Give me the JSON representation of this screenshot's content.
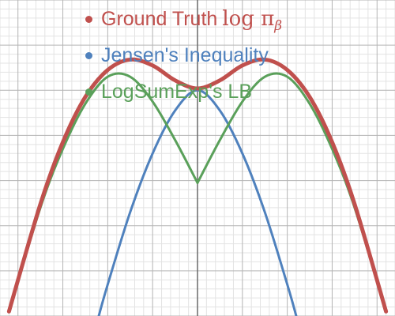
{
  "chart_data": {
    "type": "line",
    "title": "",
    "xlabel": "",
    "ylabel": "",
    "grid": true,
    "legend_position": "top",
    "xlim": [
      -4.4,
      4.4
    ],
    "ylim": [
      -3.0,
      4.0
    ],
    "series": [
      {
        "name": "Ground Truth",
        "name_math": "log π",
        "name_math_sub": "β",
        "color": "#c0504d",
        "x": [
          -4.2,
          -3.5,
          -3.0,
          -2.5,
          -2.0,
          -1.5,
          -1.0,
          -0.5,
          0.0,
          0.5,
          1.0,
          1.5,
          2.0,
          2.5,
          3.0,
          3.5,
          4.2
        ],
        "y": [
          -2.9,
          -0.52,
          0.85,
          1.85,
          2.45,
          2.68,
          2.55,
          2.22,
          2.04,
          2.22,
          2.55,
          2.68,
          2.45,
          1.85,
          0.85,
          -0.52,
          -2.9
        ]
      },
      {
        "name": "Jensen's Inequality",
        "color": "#4f81bd",
        "x": [
          -2.2,
          -2.0,
          -1.5,
          -1.0,
          -0.5,
          0.0,
          0.5,
          1.0,
          1.5,
          2.0,
          2.2
        ],
        "y": [
          -3.0,
          -2.3,
          -0.7,
          0.6,
          1.55,
          2.0,
          1.55,
          0.6,
          -0.7,
          -2.3,
          -3.0
        ]
      },
      {
        "name": "LogSumExp's LB",
        "color": "#5aa05a",
        "x": [
          -4.2,
          -3.5,
          -3.0,
          -2.5,
          -2.0,
          -1.5,
          -1.0,
          -0.5,
          0.0,
          0.5,
          1.0,
          1.5,
          2.0,
          2.5,
          3.0,
          3.5,
          4.2
        ],
        "y": [
          -2.9,
          -0.6,
          0.7,
          1.7,
          2.3,
          2.3,
          1.75,
          0.9,
          -0.05,
          0.9,
          1.75,
          2.3,
          2.3,
          1.7,
          0.7,
          -0.6,
          -2.9
        ]
      }
    ]
  }
}
